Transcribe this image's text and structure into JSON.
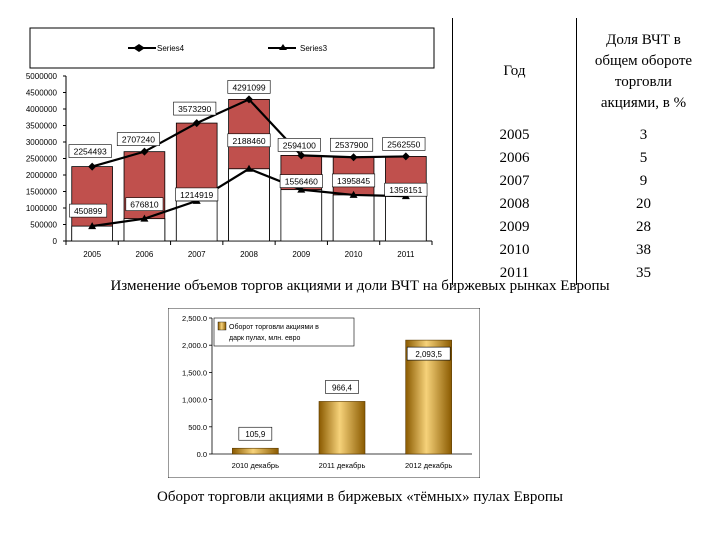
{
  "chart_data": [
    {
      "type": "bar+line",
      "categories": [
        "2005",
        "2006",
        "2007",
        "2008",
        "2009",
        "2010",
        "2011"
      ],
      "ylim": [
        0,
        5000000
      ],
      "yticks": [
        "5000000",
        "4500000",
        "4000000",
        "3500000",
        "3000000",
        "2500000",
        "2000000",
        "1500000",
        "1000000",
        "500000",
        "0"
      ],
      "legend": [
        "Series4",
        "Series3"
      ],
      "series": [
        {
          "name": "Series4",
          "values": [
            2254493,
            2707240,
            3573290,
            4291099,
            2594100,
            2537900,
            2562550
          ],
          "labels": [
            "2254493",
            "2707240",
            "3573290",
            "4291099",
            "2594100",
            "2537900",
            "2562550"
          ]
        },
        {
          "name": "Series3",
          "values": [
            450899,
            676810,
            1214919,
            2188460,
            1556460,
            1395845,
            1358151
          ],
          "labels": [
            "450899",
            "676810",
            "1214919",
            "2188460",
            "1556460",
            "1395845",
            "1358151"
          ]
        }
      ]
    },
    {
      "type": "bar",
      "categories": [
        "2010 декабрь",
        "2011 декабрь",
        "2012 декабрь"
      ],
      "values": [
        105.9,
        966.4,
        2093.5
      ],
      "labels": [
        "105,9",
        "966,4",
        "2,093,5"
      ],
      "ylim": [
        0,
        2500
      ],
      "yticks": [
        "2,500.0",
        "2,000.0",
        "1,500.0",
        "1,000.0",
        "500.0",
        "0.0"
      ],
      "legend_line1": "Оборот торговли акциями в",
      "legend_line2": "дарк пулах, млн. евро"
    }
  ],
  "table": {
    "col1_header": "Год",
    "col2_header_lines": [
      "Доля ВЧТ  в",
      "общем обороте",
      "торговли",
      "акциями, в %"
    ],
    "years": [
      "2005",
      "2006",
      "2007",
      "2008",
      "2009",
      "2010",
      "2011"
    ],
    "shares": [
      "3",
      "5",
      "9",
      "20",
      "28",
      "38",
      "35"
    ]
  },
  "captions": {
    "chart1": "Изменение объемов торгов акциями и доли ВЧТ на биржевых рынках Европы",
    "chart2": "Оборот торговли акциями в биржевых «тёмных» пулах Европы"
  },
  "colors": {
    "bar_red": "#c0504d",
    "bar_white": "#ffffff",
    "line": "#000000",
    "gold_light": "#f6d27a",
    "gold_dark": "#8a5a00"
  }
}
